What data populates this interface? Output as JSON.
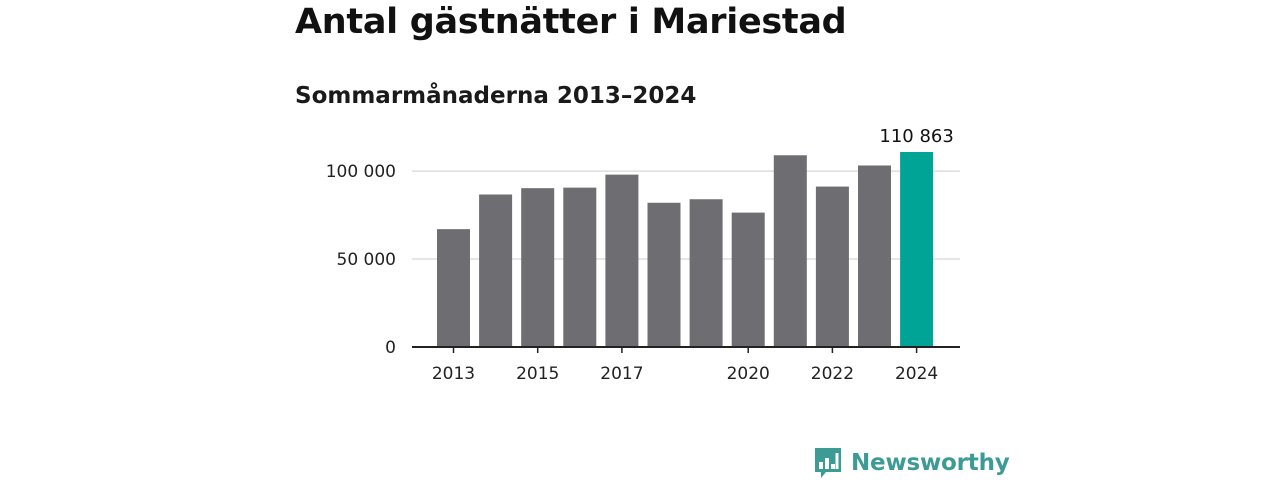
{
  "title": "Antal gästnätter i Mariestad",
  "subtitle": "Sommarmånaderna 2013–2024",
  "brand": {
    "name": "Newsworthy",
    "icon": "bar-chart-speech-bubble-icon",
    "color": "#3d9b96"
  },
  "colors": {
    "bar": "#6d6d72",
    "highlight": "#00a497",
    "grid": "#dddddd",
    "axis": "#222222"
  },
  "chart_data": {
    "type": "bar",
    "title": "Antal gästnätter i Mariestad",
    "subtitle": "Sommarmånaderna 2013–2024",
    "xlabel": "",
    "ylabel": "",
    "categories": [
      "2013",
      "2014",
      "2015",
      "2016",
      "2017",
      "2018",
      "2019",
      "2020",
      "2021",
      "2022",
      "2023",
      "2024"
    ],
    "values": [
      67000,
      86700,
      90300,
      90600,
      98000,
      82000,
      84000,
      76400,
      109000,
      91200,
      103200,
      110863
    ],
    "x_tick_labels": [
      "2013",
      "2015",
      "2017",
      "2020",
      "2022",
      "2024"
    ],
    "y_ticks": [
      0,
      50000,
      100000
    ],
    "y_tick_labels": [
      "0",
      "50 000",
      "100 000"
    ],
    "ylim": [
      0,
      112000
    ],
    "grid": true,
    "highlight_index": 11,
    "data_labels": [
      {
        "index": 11,
        "text": "110 863"
      }
    ],
    "legend": "none"
  }
}
